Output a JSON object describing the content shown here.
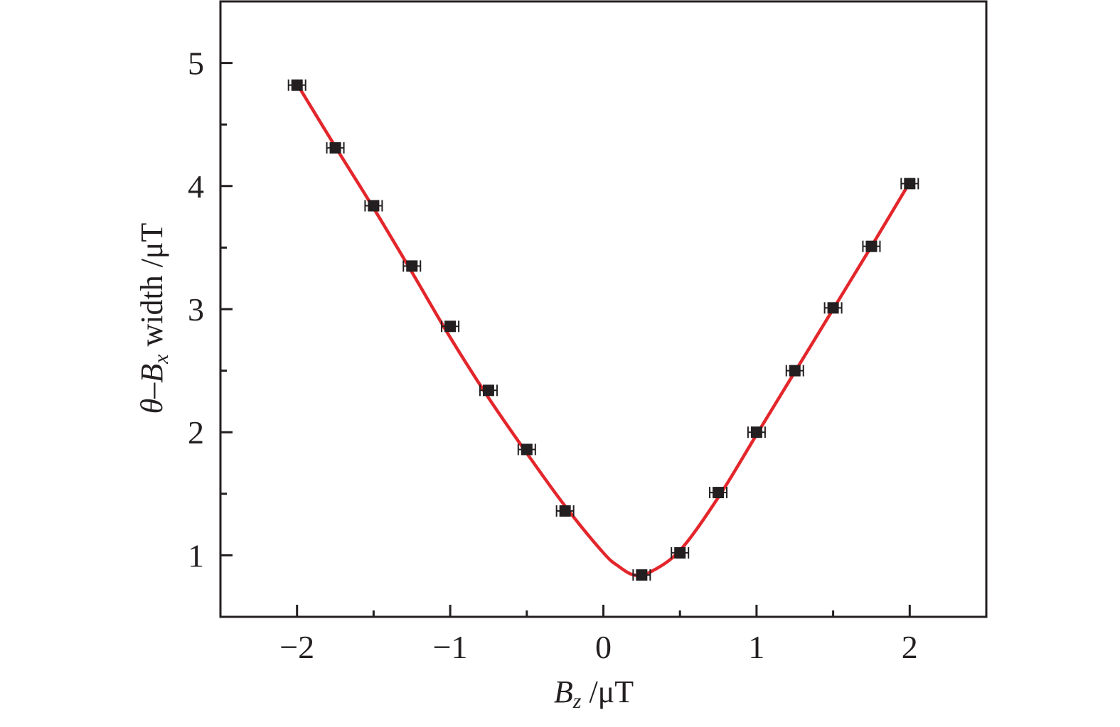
{
  "chart_data": {
    "type": "scatter",
    "title": "",
    "xlabel": {
      "symbol": "B",
      "subscript": "z",
      "unit": " /μT"
    },
    "ylabel": {
      "theta": "θ",
      "dash": "–",
      "symbol": "B",
      "subscript": "x",
      "rest": " width /μT"
    },
    "xlim": [
      -2.5,
      2.5
    ],
    "ylim": [
      0.5,
      5.5
    ],
    "x_ticks": [
      -2,
      -1,
      0,
      1,
      2
    ],
    "x_tick_labels": [
      "−2",
      "−1",
      "0",
      "1",
      "2"
    ],
    "y_ticks": [
      1,
      2,
      3,
      4,
      5
    ],
    "y_tick_labels": [
      "1",
      "2",
      "3",
      "4",
      "5"
    ],
    "grid": false,
    "legend": "none",
    "colors": {
      "points": "#231f20",
      "fit": "#e3262b",
      "axes": "#231f20"
    },
    "series": [
      {
        "marker": "square",
        "error_bars": "horizontal",
        "x": [
          -2,
          -1.75,
          -1.5,
          -1.25,
          -1,
          -0.75,
          -0.5,
          -0.25,
          0.25,
          0.5,
          0.75,
          1,
          1.25,
          1.5,
          1.75,
          2
        ],
        "y": [
          4.82,
          4.31,
          3.84,
          3.35,
          2.86,
          2.34,
          1.86,
          1.36,
          0.84,
          1.02,
          1.51,
          2.0,
          2.5,
          3.01,
          3.51,
          4.02
        ]
      },
      {
        "style": "line",
        "x": [
          -2,
          -1.75,
          -1.5,
          -1.25,
          -1,
          -0.75,
          -0.5,
          -0.25,
          0,
          0.1,
          0.2,
          0.3,
          0.5,
          0.75,
          1,
          1.25,
          1.5,
          1.75,
          2
        ],
        "y": [
          4.83,
          4.32,
          3.82,
          3.3,
          2.77,
          2.28,
          1.83,
          1.4,
          1.02,
          0.91,
          0.84,
          0.86,
          1.04,
          1.47,
          1.98,
          2.49,
          3.0,
          3.51,
          4.03
        ]
      }
    ]
  }
}
